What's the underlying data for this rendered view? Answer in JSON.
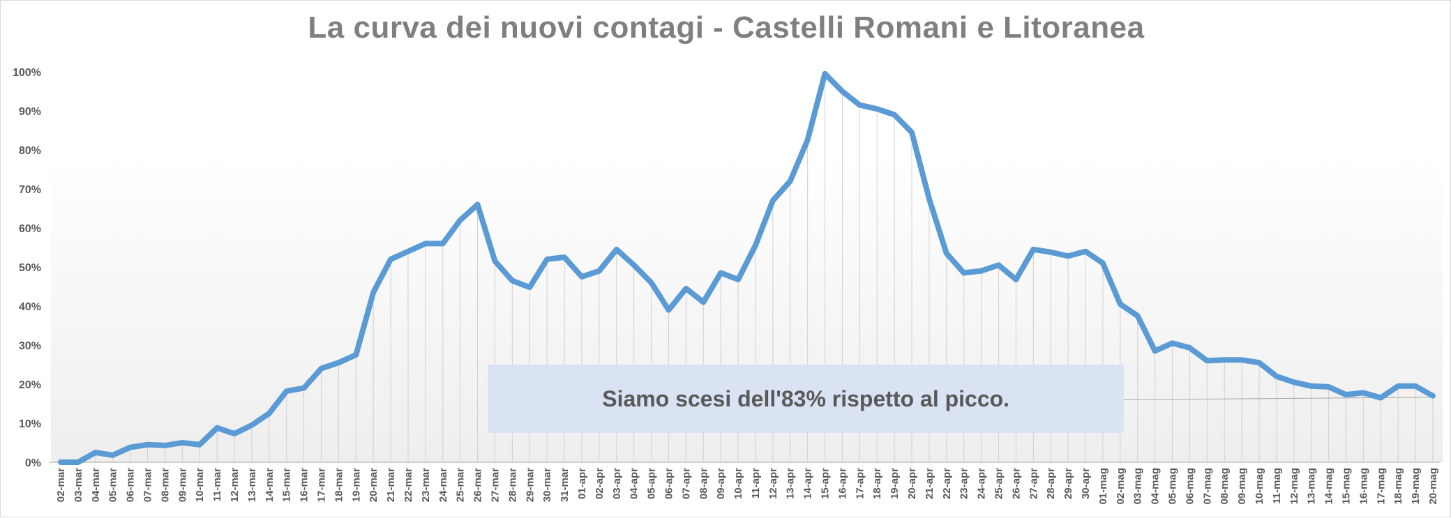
{
  "chart_data": {
    "type": "line",
    "title": "La curva dei nuovi contagi - Castelli Romani e Litoranea",
    "xlabel": "",
    "ylabel": "",
    "ylim": [
      0,
      100
    ],
    "y_ticks": [
      "0%",
      "10%",
      "20%",
      "30%",
      "40%",
      "50%",
      "60%",
      "70%",
      "80%",
      "90%",
      "100%"
    ],
    "grid": "vertical drop lines per category",
    "legend": "none",
    "line_color": "#5b9bd5",
    "annotation": "Siamo scesi dell'83% rispetto al picco.",
    "annotation_color": "#dae3f3",
    "categories": [
      "02-mar",
      "03-mar",
      "04-mar",
      "05-mar",
      "06-mar",
      "07-mar",
      "08-mar",
      "09-mar",
      "10-mar",
      "11-mar",
      "12-mar",
      "13-mar",
      "14-mar",
      "15-mar",
      "16-mar",
      "17-mar",
      "18-mar",
      "19-mar",
      "20-mar",
      "21-mar",
      "22-mar",
      "23-mar",
      "24-mar",
      "25-mar",
      "26-mar",
      "27-mar",
      "28-mar",
      "29-mar",
      "30-mar",
      "31-mar",
      "01-apr",
      "02-apr",
      "03-apr",
      "04-apr",
      "05-apr",
      "06-apr",
      "07-apr",
      "08-apr",
      "09-apr",
      "10-apr",
      "11-apr",
      "12-apr",
      "13-apr",
      "14-apr",
      "15-apr",
      "16-apr",
      "17-apr",
      "18-apr",
      "19-apr",
      "20-apr",
      "21-apr",
      "22-apr",
      "23-apr",
      "24-apr",
      "25-apr",
      "26-apr",
      "27-apr",
      "28-apr",
      "29-apr",
      "30-apr",
      "01-mag",
      "02-mag",
      "03-mag",
      "04-mag",
      "05-mag",
      "06-mag",
      "07-mag",
      "08-mag",
      "09-mag",
      "10-mag",
      "11-mag",
      "12-mag",
      "13-mag",
      "14-mag",
      "15-mag",
      "16-mag",
      "17-mag",
      "18-mag",
      "19-mag",
      "20-mag"
    ],
    "values": [
      0,
      0,
      2.5,
      1.8,
      3.8,
      4.5,
      4.3,
      5,
      4.5,
      8.8,
      7.3,
      9.5,
      12.5,
      18.2,
      19,
      24,
      25.5,
      27.5,
      43.5,
      52,
      54,
      56,
      56,
      62,
      66,
      51.5,
      46.5,
      44.8,
      52,
      52.5,
      47.5,
      49,
      54.5,
      50.5,
      46,
      39,
      44.5,
      41,
      48.5,
      46.8,
      55.5,
      67,
      72,
      82.5,
      99.5,
      95,
      91.5,
      90.5,
      89,
      84.5,
      67.5,
      53.5,
      48.5,
      49,
      50.5,
      46.8,
      54.5,
      53.8,
      52.8,
      54,
      51,
      40.5,
      37.5,
      28.5,
      30.5,
      29.3,
      26,
      26.2,
      26.2,
      25.5,
      22,
      20.5,
      19.5,
      19.3,
      17.3,
      17.8,
      16.5,
      19.5,
      19.5,
      17
    ]
  }
}
